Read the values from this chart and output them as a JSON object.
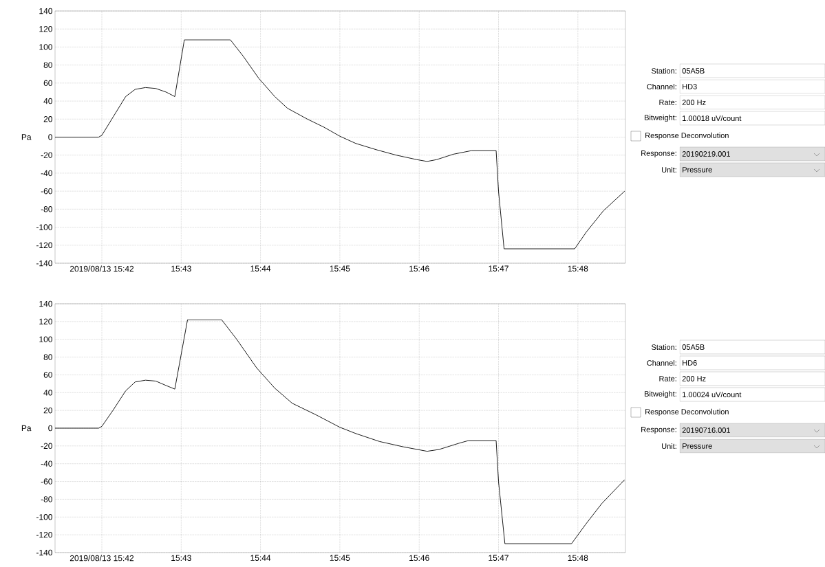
{
  "chart_data": [
    {
      "type": "line",
      "ylabel": "Pa",
      "color": "#000000",
      "grid": true,
      "x": [
        15.69017,
        15.69933,
        15.7,
        15.70233,
        15.705,
        15.707,
        15.70917,
        15.71133,
        15.7135,
        15.71533,
        15.71733,
        15.727,
        15.72967,
        15.733,
        15.73633,
        15.739,
        15.74317,
        15.74667,
        15.75,
        15.75333,
        15.75767,
        15.76183,
        15.76617,
        15.76833,
        15.77033,
        15.77383,
        15.77767,
        15.78283,
        15.78333,
        15.7845,
        15.79933,
        15.80183,
        15.80533,
        15.80983
      ],
      "values": [
        0,
        0,
        2,
        22,
        45,
        53,
        55,
        54,
        50,
        45,
        108,
        108,
        90,
        65,
        45,
        32,
        20,
        11,
        1,
        -7,
        -14,
        -20,
        -25,
        -27,
        -25,
        -19,
        -15,
        -15,
        -60,
        -124,
        -124,
        -105,
        -82,
        -60
      ],
      "xlim": [
        15.69017,
        15.81
      ],
      "ylim": [
        -140,
        140
      ],
      "xticks": [
        {
          "value": 15.7,
          "label": "2019/08/13 15:42"
        },
        {
          "value": 15.71667,
          "label": "15:43"
        },
        {
          "value": 15.73333,
          "label": "15:44"
        },
        {
          "value": 15.75,
          "label": "15:45"
        },
        {
          "value": 15.76667,
          "label": "15:46"
        },
        {
          "value": 15.78333,
          "label": "15:47"
        },
        {
          "value": 15.8,
          "label": "15:48"
        }
      ],
      "yticks": [
        -140,
        -120,
        -100,
        -80,
        -60,
        -40,
        -20,
        0,
        20,
        40,
        60,
        80,
        100,
        120,
        140
      ]
    },
    {
      "type": "other",
      "annotations": [
        "Station:",
        "05A5B",
        "Channel:",
        "HD3",
        "Rate:",
        "200 Hz",
        "Bitweight:",
        "1.00018 uV/count",
        "Response Deconvolution",
        "Response:",
        "20190219.001",
        "Unit:",
        "Pressure"
      ]
    },
    {
      "type": "line",
      "ylabel": "Pa",
      "color": "#000000",
      "grid": true,
      "x": [
        15.69017,
        15.69933,
        15.7,
        15.70233,
        15.705,
        15.707,
        15.70917,
        15.71133,
        15.7135,
        15.71533,
        15.718,
        15.72517,
        15.72833,
        15.7325,
        15.73633,
        15.74,
        15.745,
        15.75,
        15.75333,
        15.75833,
        15.76333,
        15.76833,
        15.77083,
        15.775,
        15.777,
        15.78283,
        15.78333,
        15.78467,
        15.79867,
        15.80167,
        15.805,
        15.80983
      ],
      "values": [
        0,
        0,
        2,
        20,
        42,
        52,
        54,
        53,
        48,
        44,
        122,
        122,
        100,
        68,
        45,
        28,
        15,
        1,
        -6,
        -15,
        -21,
        -26,
        -24,
        -17,
        -14,
        -14,
        -60,
        -130,
        -130,
        -108,
        -85,
        -58
      ],
      "xlim": [
        15.69017,
        15.81
      ],
      "ylim": [
        -140,
        140
      ],
      "xticks": [
        {
          "value": 15.7,
          "label": "2019/08/13 15:42"
        },
        {
          "value": 15.71667,
          "label": "15:43"
        },
        {
          "value": 15.73333,
          "label": "15:44"
        },
        {
          "value": 15.75,
          "label": "15:45"
        },
        {
          "value": 15.76667,
          "label": "15:46"
        },
        {
          "value": 15.78333,
          "label": "15:47"
        },
        {
          "value": 15.8,
          "label": "15:48"
        }
      ],
      "yticks": [
        -140,
        -120,
        -100,
        -80,
        -60,
        -40,
        -20,
        0,
        20,
        40,
        60,
        80,
        100,
        120,
        140
      ]
    },
    {
      "type": "other",
      "annotations": [
        "Station:",
        "05A5B",
        "Channel:",
        "HD6",
        "Rate:",
        "200 Hz",
        "Bitweight:",
        "1.00024 uV/count",
        "Response Deconvolution",
        "Response:",
        "20190716.001",
        "Unit:",
        "Pressure"
      ]
    }
  ]
}
